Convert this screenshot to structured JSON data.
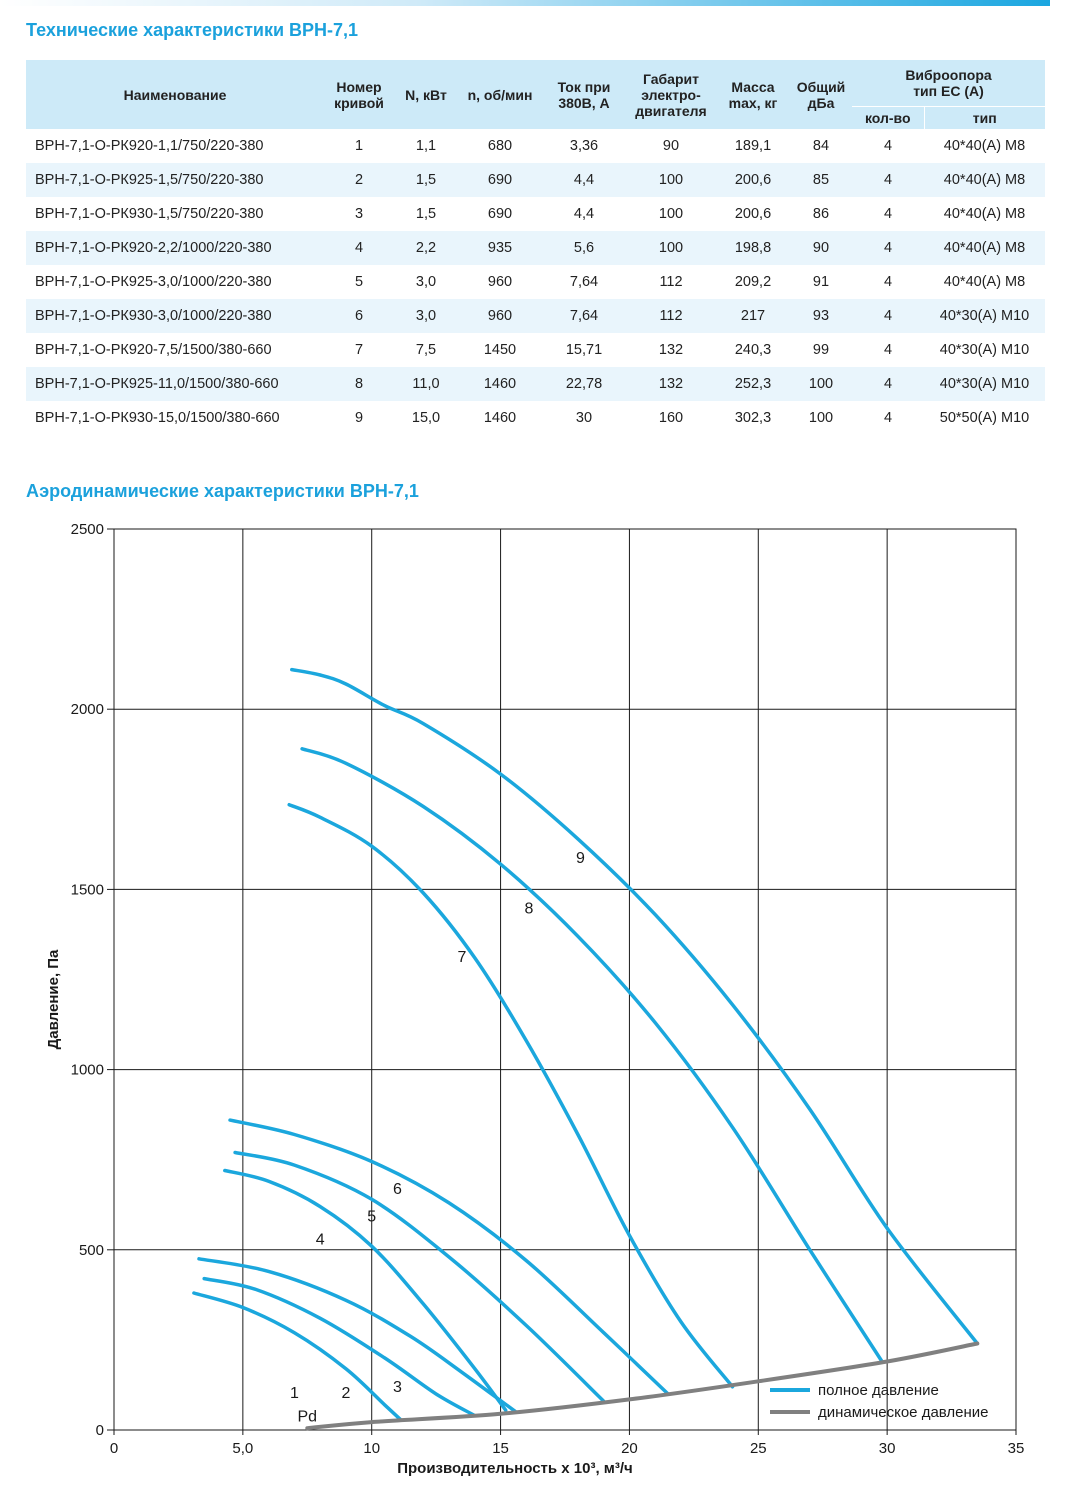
{
  "tech_title": "Технические характеристики ВРН-7,1",
  "aero_title": "Аэродинамические характеристики ВРН-7,1",
  "table": {
    "headers": {
      "name": "Наименование",
      "curve_1": "Номер",
      "curve_2": "кривой",
      "power": "N, кВт",
      "rpm": "n, об/мин",
      "current_1": "Ток при",
      "current_2": "380В, А",
      "frame_1": "Габарит",
      "frame_2": "электро-",
      "frame_3": "двигателя",
      "mass_1": "Масса",
      "mass_2": "max, кг",
      "noise_1": "Общий",
      "noise_2": "дБа",
      "mount_1": "Виброопора",
      "mount_2": "тип ЕС (А)",
      "mount_qty": "кол-во",
      "mount_type": "тип"
    },
    "rows": [
      {
        "name": "ВРН-7,1-О-РК920-1,1/750/220-380",
        "curve": "1",
        "power": "1,1",
        "rpm": "680",
        "current": "3,36",
        "frame": "90",
        "mass": "189,1",
        "noise": "84",
        "qty": "4",
        "type": "40*40(А) М8"
      },
      {
        "name": "ВРН-7,1-О-РК925-1,5/750/220-380",
        "curve": "2",
        "power": "1,5",
        "rpm": "690",
        "current": "4,4",
        "frame": "100",
        "mass": "200,6",
        "noise": "85",
        "qty": "4",
        "type": "40*40(А) М8"
      },
      {
        "name": "ВРН-7,1-О-РК930-1,5/750/220-380",
        "curve": "3",
        "power": "1,5",
        "rpm": "690",
        "current": "4,4",
        "frame": "100",
        "mass": "200,6",
        "noise": "86",
        "qty": "4",
        "type": "40*40(А) М8"
      },
      {
        "name": "ВРН-7,1-О-РК920-2,2/1000/220-380",
        "curve": "4",
        "power": "2,2",
        "rpm": "935",
        "current": "5,6",
        "frame": "100",
        "mass": "198,8",
        "noise": "90",
        "qty": "4",
        "type": "40*40(А) М8"
      },
      {
        "name": "ВРН-7,1-О-РК925-3,0/1000/220-380",
        "curve": "5",
        "power": "3,0",
        "rpm": "960",
        "current": "7,64",
        "frame": "112",
        "mass": "209,2",
        "noise": "91",
        "qty": "4",
        "type": "40*40(А) М8"
      },
      {
        "name": "ВРН-7,1-О-РК930-3,0/1000/220-380",
        "curve": "6",
        "power": "3,0",
        "rpm": "960",
        "current": "7,64",
        "frame": "112",
        "mass": "217",
        "noise": "93",
        "qty": "4",
        "type": "40*30(А) М10"
      },
      {
        "name": "ВРН-7,1-О-РК920-7,5/1500/380-660",
        "curve": "7",
        "power": "7,5",
        "rpm": "1450",
        "current": "15,71",
        "frame": "132",
        "mass": "240,3",
        "noise": "99",
        "qty": "4",
        "type": "40*30(А) М10"
      },
      {
        "name": "ВРН-7,1-О-РК925-11,0/1500/380-660",
        "curve": "8",
        "power": "11,0",
        "rpm": "1460",
        "current": "22,78",
        "frame": "132",
        "mass": "252,3",
        "noise": "100",
        "qty": "4",
        "type": "40*30(А) М10"
      },
      {
        "name": "ВРН-7,1-О-РК930-15,0/1500/380-660",
        "curve": "9",
        "power": "15,0",
        "rpm": "1460",
        "current": "30",
        "frame": "160",
        "mass": "302,3",
        "noise": "100",
        "qty": "4",
        "type": "50*50(А) М10"
      }
    ]
  },
  "chart_data": {
    "type": "line",
    "title": "Аэродинамические характеристики ВРН-7,1",
    "xlabel": "Производительность х 10³, м³/ч",
    "ylabel": "Давление, Па",
    "xlim": [
      0,
      35
    ],
    "ylim": [
      0,
      2500
    ],
    "x_ticks": [
      0,
      5,
      10,
      15,
      20,
      25,
      30,
      35
    ],
    "x_tick_labels": [
      "0",
      "5,0",
      "10",
      "15",
      "20",
      "25",
      "30",
      "35"
    ],
    "y_ticks": [
      0,
      500,
      1000,
      1500,
      2000,
      2500
    ],
    "y_tick_labels": [
      "0",
      "500",
      "1000",
      "1500",
      "2000",
      "2500"
    ],
    "grid": true,
    "legend_position": "bottom-right",
    "legend": [
      {
        "label": "полное давление",
        "color": "#1ba7dd"
      },
      {
        "label": "динамическое давление",
        "color": "#808080"
      }
    ],
    "colors": {
      "total_pressure": "#1ba7dd",
      "dynamic_pressure": "#808080"
    },
    "series": [
      {
        "label": "1",
        "kind": "total",
        "label_at": [
          7,
          105
        ],
        "points": [
          [
            3.1,
            380
          ],
          [
            5,
            340
          ],
          [
            7,
            270
          ],
          [
            9,
            170
          ],
          [
            10.5,
            70
          ],
          [
            11.1,
            30
          ]
        ]
      },
      {
        "label": "2",
        "kind": "total",
        "label_at": [
          9,
          105
        ],
        "points": [
          [
            3.5,
            420
          ],
          [
            5.5,
            390
          ],
          [
            8,
            310
          ],
          [
            10.5,
            200
          ],
          [
            12.5,
            100
          ],
          [
            14,
            40
          ]
        ]
      },
      {
        "label": "3",
        "kind": "total",
        "label_at": [
          11,
          122
        ],
        "points": [
          [
            3.3,
            475
          ],
          [
            6,
            440
          ],
          [
            9,
            360
          ],
          [
            11.5,
            260
          ],
          [
            13.5,
            160
          ],
          [
            15.6,
            50
          ]
        ]
      },
      {
        "label": "4",
        "kind": "total",
        "label_at": [
          8,
          532
        ],
        "points": [
          [
            4.3,
            720
          ],
          [
            6,
            690
          ],
          [
            8,
            620
          ],
          [
            10,
            510
          ],
          [
            12,
            350
          ],
          [
            14,
            170
          ],
          [
            15.2,
            55
          ]
        ]
      },
      {
        "label": "5",
        "kind": "total",
        "label_at": [
          10,
          595
        ],
        "points": [
          [
            4.7,
            770
          ],
          [
            7,
            735
          ],
          [
            10,
            640
          ],
          [
            13,
            480
          ],
          [
            16,
            290
          ],
          [
            19,
            80
          ]
        ]
      },
      {
        "label": "6",
        "kind": "total",
        "label_at": [
          11,
          672
        ],
        "points": [
          [
            4.5,
            860
          ],
          [
            7,
            820
          ],
          [
            10,
            745
          ],
          [
            13,
            630
          ],
          [
            16,
            470
          ],
          [
            19,
            270
          ],
          [
            21.5,
            100
          ]
        ]
      },
      {
        "label": "7",
        "kind": "total",
        "label_at": [
          13.5,
          1315
        ],
        "points": [
          [
            6.8,
            1735
          ],
          [
            8,
            1700
          ],
          [
            10,
            1620
          ],
          [
            12,
            1490
          ],
          [
            14,
            1310
          ],
          [
            16,
            1080
          ],
          [
            18,
            820
          ],
          [
            20,
            540
          ],
          [
            22,
            300
          ],
          [
            24,
            120
          ]
        ]
      },
      {
        "label": "8",
        "kind": "total",
        "label_at": [
          16.1,
          1450
        ],
        "points": [
          [
            7.3,
            1890
          ],
          [
            9,
            1850
          ],
          [
            12,
            1730
          ],
          [
            15,
            1570
          ],
          [
            18,
            1370
          ],
          [
            21,
            1130
          ],
          [
            24,
            840
          ],
          [
            27,
            500
          ],
          [
            29.8,
            190
          ]
        ]
      },
      {
        "label": "9",
        "kind": "total",
        "label_at": [
          18.1,
          1590
        ],
        "points": [
          [
            6.9,
            2110
          ],
          [
            8,
            2095
          ],
          [
            9,
            2070
          ],
          [
            10.5,
            2010
          ],
          [
            12,
            1960
          ],
          [
            15,
            1820
          ],
          [
            18,
            1640
          ],
          [
            21,
            1430
          ],
          [
            24,
            1180
          ],
          [
            27,
            890
          ],
          [
            30,
            560
          ],
          [
            33.5,
            240
          ]
        ]
      },
      {
        "label": "Pd",
        "kind": "dynamic",
        "label_at": [
          7.5,
          40
        ],
        "points": [
          [
            7.5,
            5
          ],
          [
            10,
            22
          ],
          [
            15,
            45
          ],
          [
            20,
            85
          ],
          [
            25,
            135
          ],
          [
            30,
            190
          ],
          [
            33.5,
            240
          ]
        ]
      }
    ]
  }
}
